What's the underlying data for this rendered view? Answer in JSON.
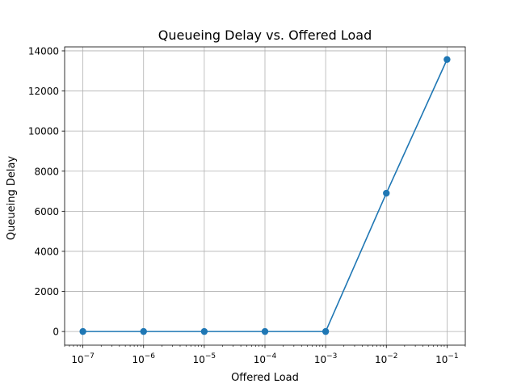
{
  "chart_data": {
    "type": "line",
    "title": "Queueing Delay vs. Offered Load",
    "xlabel": "Offered Load",
    "ylabel": "Queueing Delay",
    "xscale": "log",
    "grid": true,
    "xlim": [
      5e-08,
      0.2
    ],
    "ylim": [
      -680,
      14200
    ],
    "x_tick_labels": [
      {
        "value": 1e-07,
        "base": "10",
        "exp": "−7"
      },
      {
        "value": 1e-06,
        "base": "10",
        "exp": "−6"
      },
      {
        "value": 1e-05,
        "base": "10",
        "exp": "−5"
      },
      {
        "value": 0.0001,
        "base": "10",
        "exp": "−4"
      },
      {
        "value": 0.001,
        "base": "10",
        "exp": "−3"
      },
      {
        "value": 0.01,
        "base": "10",
        "exp": "−2"
      },
      {
        "value": 0.1,
        "base": "10",
        "exp": "−1"
      }
    ],
    "y_ticks": [
      0,
      2000,
      4000,
      6000,
      8000,
      10000,
      12000,
      14000
    ],
    "series": [
      {
        "color": "#1f77b4",
        "marker": "circle",
        "x": [
          1e-07,
          1e-06,
          1e-05,
          0.0001,
          0.001,
          0.01,
          0.1
        ],
        "y": [
          0,
          0,
          0,
          0,
          0,
          6900,
          13570
        ]
      }
    ]
  }
}
